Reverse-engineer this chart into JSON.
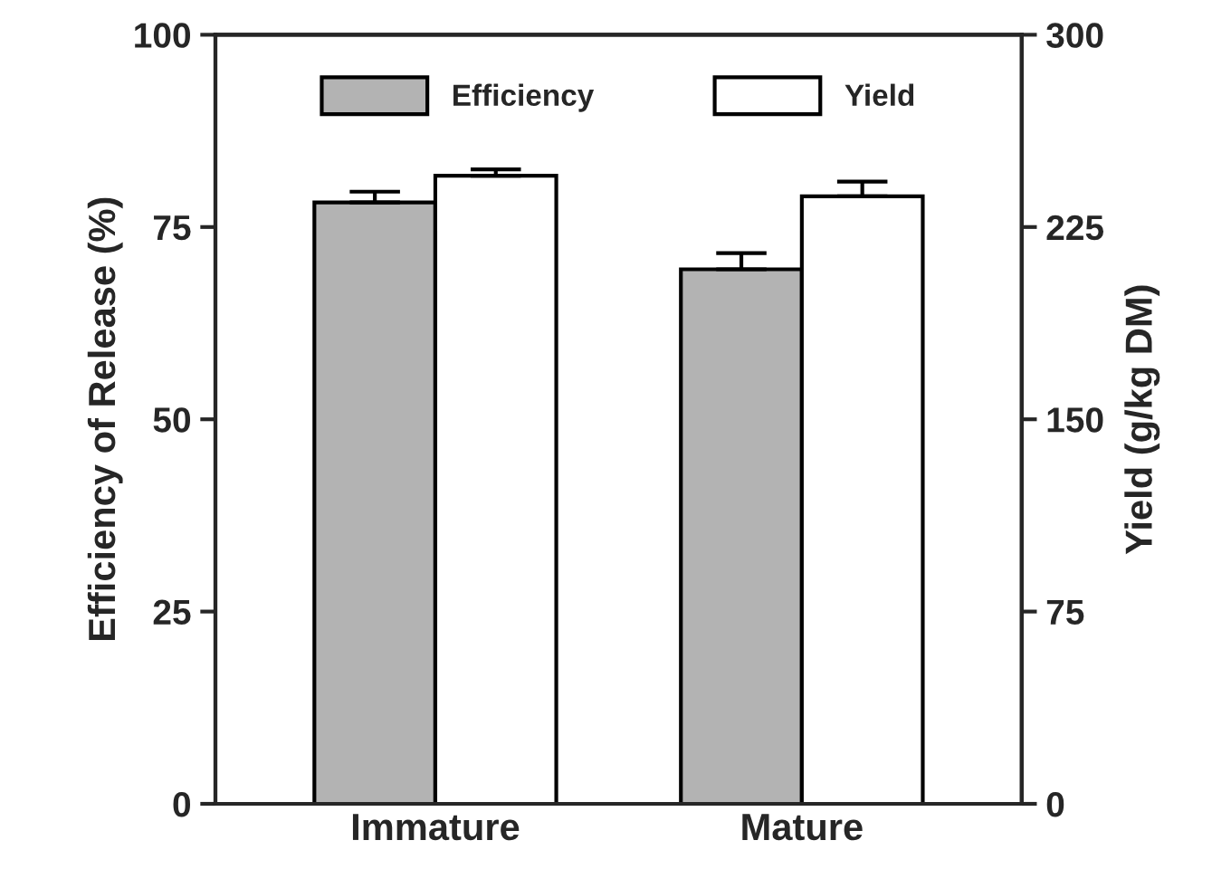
{
  "chart_data": {
    "type": "bar",
    "categories": [
      "Immature",
      "Mature"
    ],
    "ylabel": "Efficiency of Release (%)",
    "y2label": "Yield (g/kg DM)",
    "ylim": [
      0,
      100
    ],
    "yticks": [
      0,
      25,
      50,
      75,
      100
    ],
    "y2lim": [
      0,
      300
    ],
    "y2ticks": [
      0,
      75,
      150,
      225,
      300
    ],
    "legend": "top",
    "grid": false,
    "series": [
      {
        "name": "Efficiency",
        "color": "#b3b3b3",
        "values": [
          78.2,
          69.5
        ],
        "errors": [
          1.4,
          2.1
        ]
      },
      {
        "name": "Yield",
        "color": "#ffffff",
        "values": [
          245,
          237
        ],
        "errors": [
          2.5,
          5.7
        ],
        "axis": "y2"
      }
    ]
  }
}
